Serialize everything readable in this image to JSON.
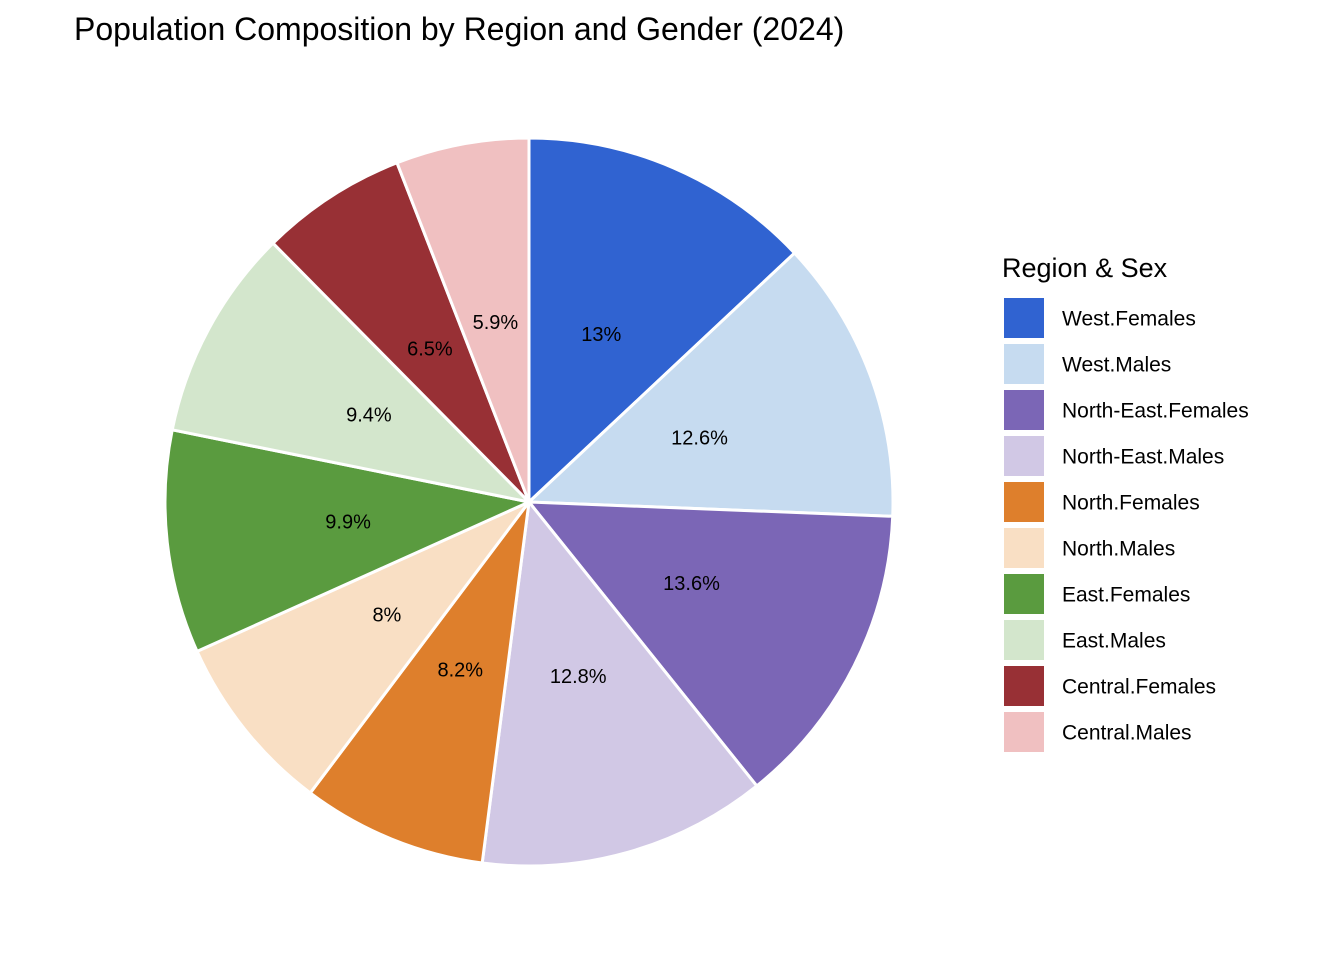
{
  "chart_data": {
    "type": "pie",
    "title": "Population Composition by Region and Gender (2024)",
    "legend_title": "Region & Sex",
    "legend_position": "right",
    "direction": "clockwise",
    "start": "12 o'clock",
    "slices": [
      {
        "label": "West.Females",
        "value": 13.0,
        "display": "13%",
        "color": "#3063d1"
      },
      {
        "label": "West.Males",
        "value": 12.6,
        "display": "12.6%",
        "color": "#c6dbf0"
      },
      {
        "label": "North-East.Females",
        "value": 13.6,
        "display": "13.6%",
        "color": "#7b66b6"
      },
      {
        "label": "North-East.Males",
        "value": 12.8,
        "display": "12.8%",
        "color": "#d1c8e5"
      },
      {
        "label": "North.Females",
        "value": 8.2,
        "display": "8.2%",
        "color": "#de7f2c"
      },
      {
        "label": "North.Males",
        "value": 8.0,
        "display": "8%",
        "color": "#f9dfc4"
      },
      {
        "label": "East.Females",
        "value": 9.9,
        "display": "9.9%",
        "color": "#5a9b3f"
      },
      {
        "label": "East.Males",
        "value": 9.4,
        "display": "9.4%",
        "color": "#d3e6cc"
      },
      {
        "label": "Central.Females",
        "value": 6.5,
        "display": "6.5%",
        "color": "#983035"
      },
      {
        "label": "Central.Males",
        "value": 5.9,
        "display": "5.9%",
        "color": "#f0c0c1"
      }
    ]
  }
}
